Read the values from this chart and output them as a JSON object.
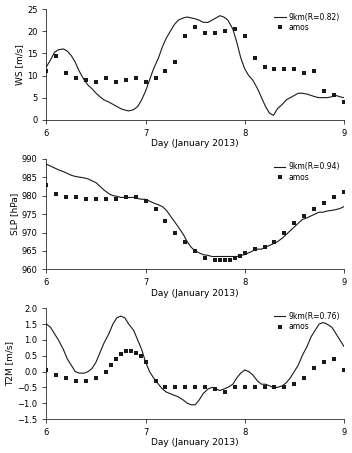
{
  "title_ws": "9km(R=0.82)",
  "title_slp": "9km(R=0.94)",
  "title_t2m": "9km(R=0.76)",
  "legend_obs": "amos",
  "xlabel": "Day (January 2013)",
  "ylabel_ws": "WS [m/s]",
  "ylabel_slp": "SLP [hPa]",
  "ylabel_t2m": "T2M [m/s]",
  "xlim": [
    6.0,
    9.0
  ],
  "xticks": [
    6,
    7,
    8,
    9
  ],
  "ws_ylim": [
    0,
    25
  ],
  "ws_yticks": [
    0,
    5,
    10,
    15,
    20,
    25
  ],
  "slp_ylim": [
    960,
    990
  ],
  "slp_yticks": [
    960,
    965,
    970,
    975,
    980,
    985,
    990
  ],
  "t2m_ylim": [
    -1.5,
    2.0
  ],
  "t2m_yticks": [
    -1.5,
    -1.0,
    -0.5,
    0.0,
    0.5,
    1.0,
    1.5,
    2.0
  ],
  "line_color": "#1a1a1a",
  "dot_color": "#1a1a1a",
  "background": "#ffffff",
  "ws_sim_x": [
    6.0,
    6.04,
    6.08,
    6.12,
    6.17,
    6.21,
    6.25,
    6.29,
    6.33,
    6.38,
    6.42,
    6.46,
    6.5,
    6.54,
    6.58,
    6.63,
    6.67,
    6.71,
    6.75,
    6.79,
    6.83,
    6.88,
    6.92,
    6.96,
    7.0,
    7.04,
    7.08,
    7.13,
    7.17,
    7.21,
    7.25,
    7.29,
    7.33,
    7.38,
    7.42,
    7.46,
    7.5,
    7.54,
    7.58,
    7.63,
    7.67,
    7.71,
    7.75,
    7.79,
    7.83,
    7.88,
    7.92,
    7.96,
    8.0,
    8.04,
    8.08,
    8.13,
    8.17,
    8.21,
    8.25,
    8.29,
    8.33,
    8.38,
    8.42,
    8.46,
    8.5,
    8.54,
    8.58,
    8.63,
    8.67,
    8.71,
    8.75,
    8.79,
    8.83,
    8.88,
    8.92,
    8.96,
    9.0
  ],
  "ws_sim_y": [
    12.0,
    13.5,
    15.2,
    15.8,
    16.0,
    15.5,
    14.5,
    13.0,
    11.0,
    9.0,
    7.8,
    7.0,
    6.0,
    5.2,
    4.5,
    4.0,
    3.5,
    3.0,
    2.5,
    2.2,
    2.0,
    2.3,
    3.0,
    4.5,
    6.5,
    9.0,
    11.5,
    14.0,
    16.5,
    18.5,
    20.0,
    21.5,
    22.5,
    23.0,
    23.2,
    23.0,
    22.8,
    22.5,
    22.0,
    22.0,
    22.5,
    23.0,
    23.5,
    23.2,
    22.5,
    20.5,
    17.5,
    14.0,
    11.5,
    10.0,
    9.0,
    7.0,
    5.0,
    3.0,
    1.5,
    1.0,
    2.5,
    3.5,
    4.5,
    5.0,
    5.5,
    6.0,
    6.0,
    5.8,
    5.5,
    5.2,
    5.0,
    5.0,
    5.0,
    5.2,
    5.5,
    5.2,
    5.0
  ],
  "ws_obs_x": [
    6.0,
    6.1,
    6.2,
    6.3,
    6.4,
    6.5,
    6.6,
    6.7,
    6.8,
    6.9,
    7.0,
    7.1,
    7.2,
    7.3,
    7.4,
    7.5,
    7.6,
    7.7,
    7.8,
    7.9,
    8.0,
    8.1,
    8.2,
    8.3,
    8.4,
    8.5,
    8.6,
    8.7,
    8.8,
    8.9,
    9.0
  ],
  "ws_obs_y": [
    11.0,
    14.5,
    10.5,
    9.5,
    9.0,
    8.5,
    9.5,
    8.5,
    9.0,
    9.5,
    8.5,
    9.5,
    11.0,
    13.0,
    19.0,
    21.0,
    19.5,
    19.5,
    20.0,
    20.5,
    19.0,
    14.0,
    12.0,
    11.5,
    11.5,
    11.5,
    10.5,
    11.0,
    6.5,
    5.5,
    4.0
  ],
  "slp_sim_x": [
    6.0,
    6.04,
    6.08,
    6.12,
    6.17,
    6.21,
    6.25,
    6.29,
    6.33,
    6.38,
    6.42,
    6.46,
    6.5,
    6.54,
    6.58,
    6.63,
    6.67,
    6.71,
    6.75,
    6.79,
    6.83,
    6.88,
    6.92,
    6.96,
    7.0,
    7.04,
    7.08,
    7.13,
    7.17,
    7.21,
    7.25,
    7.29,
    7.33,
    7.38,
    7.42,
    7.46,
    7.5,
    7.54,
    7.58,
    7.63,
    7.67,
    7.71,
    7.75,
    7.79,
    7.83,
    7.88,
    7.92,
    7.96,
    8.0,
    8.04,
    8.08,
    8.13,
    8.17,
    8.21,
    8.25,
    8.29,
    8.33,
    8.38,
    8.42,
    8.46,
    8.5,
    8.54,
    8.58,
    8.63,
    8.67,
    8.71,
    8.75,
    8.79,
    8.83,
    8.88,
    8.92,
    8.96,
    9.0
  ],
  "slp_sim_y": [
    988.5,
    988.0,
    987.5,
    987.0,
    986.5,
    986.0,
    985.5,
    985.2,
    985.0,
    984.8,
    984.5,
    984.0,
    983.5,
    982.5,
    981.5,
    980.5,
    980.0,
    979.8,
    979.5,
    979.5,
    979.5,
    979.5,
    979.2,
    979.0,
    979.0,
    978.5,
    978.0,
    977.5,
    977.0,
    976.0,
    974.5,
    973.0,
    971.5,
    969.5,
    967.5,
    966.0,
    965.0,
    964.5,
    964.0,
    963.8,
    963.5,
    963.5,
    963.5,
    963.5,
    963.5,
    963.5,
    963.5,
    963.8,
    964.0,
    964.5,
    965.0,
    965.5,
    965.5,
    966.0,
    966.5,
    967.0,
    967.5,
    968.5,
    969.5,
    970.5,
    971.5,
    972.5,
    973.5,
    974.0,
    974.5,
    975.0,
    975.5,
    975.5,
    975.8,
    976.0,
    976.2,
    976.5,
    977.0
  ],
  "slp_obs_x": [
    6.0,
    6.1,
    6.2,
    6.3,
    6.4,
    6.5,
    6.6,
    6.7,
    6.8,
    6.9,
    7.0,
    7.1,
    7.2,
    7.3,
    7.4,
    7.5,
    7.6,
    7.7,
    7.75,
    7.8,
    7.85,
    7.9,
    7.95,
    8.0,
    8.1,
    8.2,
    8.3,
    8.4,
    8.5,
    8.6,
    8.7,
    8.8,
    8.9,
    9.0
  ],
  "slp_obs_y": [
    983.0,
    980.5,
    979.5,
    979.5,
    979.0,
    979.0,
    979.0,
    979.0,
    979.5,
    979.5,
    978.5,
    976.5,
    973.0,
    970.0,
    967.5,
    965.0,
    963.0,
    962.5,
    962.5,
    962.5,
    962.5,
    963.0,
    963.5,
    964.5,
    965.5,
    966.0,
    967.5,
    970.0,
    972.5,
    974.5,
    976.5,
    978.0,
    979.5,
    981.0
  ],
  "t2m_sim_x": [
    6.0,
    6.04,
    6.08,
    6.12,
    6.17,
    6.21,
    6.25,
    6.29,
    6.33,
    6.38,
    6.42,
    6.46,
    6.5,
    6.54,
    6.58,
    6.63,
    6.67,
    6.71,
    6.75,
    6.79,
    6.83,
    6.88,
    6.92,
    6.96,
    7.0,
    7.04,
    7.08,
    7.13,
    7.17,
    7.21,
    7.25,
    7.29,
    7.33,
    7.38,
    7.42,
    7.46,
    7.5,
    7.54,
    7.58,
    7.63,
    7.67,
    7.71,
    7.75,
    7.79,
    7.83,
    7.88,
    7.92,
    7.96,
    8.0,
    8.04,
    8.08,
    8.13,
    8.17,
    8.21,
    8.25,
    8.29,
    8.33,
    8.38,
    8.42,
    8.46,
    8.5,
    8.54,
    8.58,
    8.63,
    8.67,
    8.71,
    8.75,
    8.79,
    8.83,
    8.88,
    8.92,
    8.96,
    9.0
  ],
  "t2m_sim_y": [
    1.5,
    1.4,
    1.2,
    1.0,
    0.7,
    0.4,
    0.2,
    0.0,
    -0.05,
    -0.05,
    0.0,
    0.1,
    0.3,
    0.6,
    0.9,
    1.2,
    1.5,
    1.7,
    1.75,
    1.7,
    1.5,
    1.3,
    1.0,
    0.7,
    0.3,
    0.0,
    -0.2,
    -0.4,
    -0.55,
    -0.65,
    -0.7,
    -0.75,
    -0.8,
    -0.9,
    -1.0,
    -1.05,
    -1.05,
    -0.9,
    -0.7,
    -0.55,
    -0.5,
    -0.55,
    -0.6,
    -0.55,
    -0.5,
    -0.4,
    -0.2,
    -0.05,
    0.05,
    0.0,
    -0.1,
    -0.3,
    -0.4,
    -0.4,
    -0.45,
    -0.5,
    -0.5,
    -0.45,
    -0.35,
    -0.2,
    0.0,
    0.2,
    0.5,
    0.8,
    1.1,
    1.3,
    1.5,
    1.55,
    1.5,
    1.4,
    1.2,
    1.0,
    0.8
  ],
  "t2m_obs_x": [
    6.0,
    6.1,
    6.2,
    6.3,
    6.4,
    6.5,
    6.6,
    6.65,
    6.7,
    6.75,
    6.8,
    6.85,
    6.9,
    6.95,
    7.0,
    7.1,
    7.2,
    7.3,
    7.4,
    7.5,
    7.6,
    7.7,
    7.8,
    7.9,
    8.0,
    8.1,
    8.2,
    8.3,
    8.4,
    8.5,
    8.6,
    8.7,
    8.8,
    8.9,
    9.0
  ],
  "t2m_obs_y": [
    0.05,
    -0.1,
    -0.2,
    -0.3,
    -0.3,
    -0.2,
    0.0,
    0.2,
    0.4,
    0.55,
    0.65,
    0.65,
    0.6,
    0.5,
    0.3,
    -0.3,
    -0.5,
    -0.5,
    -0.5,
    -0.5,
    -0.5,
    -0.55,
    -0.65,
    -0.5,
    -0.5,
    -0.5,
    -0.5,
    -0.5,
    -0.5,
    -0.4,
    -0.2,
    0.1,
    0.3,
    0.4,
    0.05
  ]
}
